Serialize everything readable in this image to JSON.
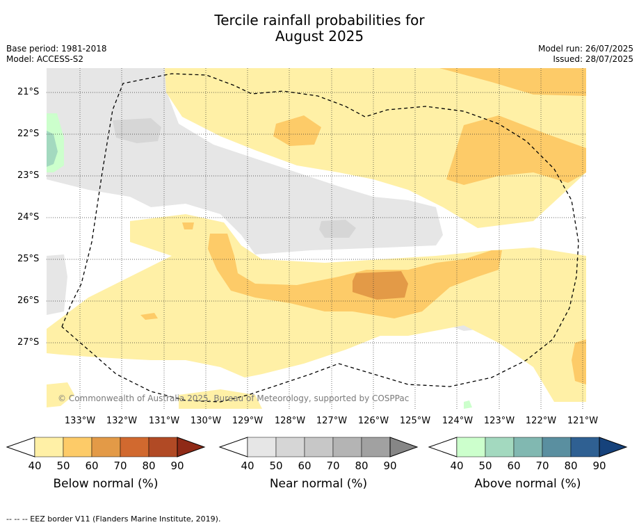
{
  "title_line1": "Tercile rainfall probabilities for",
  "title_line2": "August 2025",
  "meta_left": [
    "Base period: 1981-2018",
    "Model: ACCESS-S2"
  ],
  "meta_right": [
    "Model run: 26/07/2025",
    "Issued: 28/07/2025"
  ],
  "copyright": "© Commonwealth of Australia 2025, Bureau of Meteorology, supported by COSPPac",
  "lat_labels": [
    "21°S",
    "22°S",
    "23°S",
    "24°S",
    "25°S",
    "26°S",
    "27°S"
  ],
  "lon_labels": [
    "133°W",
    "132°W",
    "131°W",
    "130°W",
    "129°W",
    "128°W",
    "127°W",
    "126°W",
    "125°W",
    "124°W",
    "123°W",
    "122°W",
    "121°W"
  ],
  "colorbars": [
    {
      "title": "Below normal (%)",
      "ticks": [
        "40",
        "50",
        "60",
        "70",
        "80",
        "90"
      ],
      "colors": [
        "#fff0a6",
        "#fdcb68",
        "#e39a47",
        "#d1692f",
        "#b14a25",
        "#8f2a17"
      ]
    },
    {
      "title": "Near normal (%)",
      "ticks": [
        "40",
        "50",
        "60",
        "70",
        "80",
        "90"
      ],
      "colors": [
        "#e6e6e6",
        "#d6d6d6",
        "#c7c7c7",
        "#b4b4b4",
        "#a1a1a1",
        "#868686"
      ]
    },
    {
      "title": "Above normal (%)",
      "ticks": [
        "40",
        "50",
        "60",
        "70",
        "80",
        "90"
      ],
      "colors": [
        "#ccffcc",
        "#a3d9bf",
        "#81b8b1",
        "#5a8fa0",
        "#2f6092",
        "#16427b"
      ]
    }
  ],
  "footer": "--  --  -- EEZ border V11 (Flanders Marine Institute, 2019)."
}
